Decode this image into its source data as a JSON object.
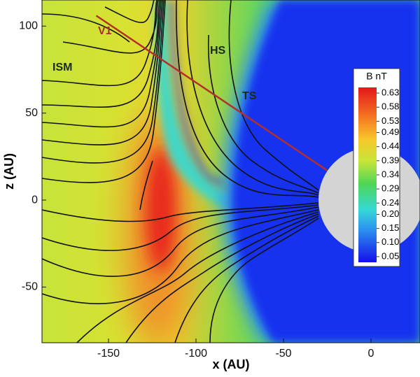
{
  "chart_data": {
    "type": "contour",
    "xlabel": "x (AU)",
    "ylabel": "z (AU)",
    "xlim": [
      -188,
      28
    ],
    "ylim": [
      -82,
      115
    ],
    "xticks": [
      -150,
      -100,
      -50,
      0
    ],
    "yticks": [
      -50,
      0,
      50,
      100
    ],
    "colorbar": {
      "title": "B nT",
      "clim": [
        0.03,
        0.65
      ],
      "ticks": [
        {
          "value": 0.63,
          "label": "0.63"
        },
        {
          "value": 0.58,
          "label": "0.58"
        },
        {
          "value": 0.53,
          "label": "0.53"
        },
        {
          "value": 0.49,
          "label": "0.49"
        },
        {
          "value": 0.44,
          "label": "0.44"
        },
        {
          "value": 0.39,
          "label": "0.39"
        },
        {
          "value": 0.34,
          "label": "0.34"
        },
        {
          "value": 0.29,
          "label": "0.29"
        },
        {
          "value": 0.24,
          "label": "0.24"
        },
        {
          "value": 0.2,
          "label": "0.20"
        },
        {
          "value": 0.15,
          "label": "0.15"
        },
        {
          "value": 0.1,
          "label": "0.10"
        },
        {
          "value": 0.05,
          "label": "0.05"
        }
      ]
    },
    "annotations": [
      "V1",
      "ISM",
      "HS",
      "TS"
    ],
    "v1_line": {
      "x": [
        -157,
        -25
      ],
      "z": [
        106,
        17
      ],
      "color": "#b3302a"
    }
  }
}
